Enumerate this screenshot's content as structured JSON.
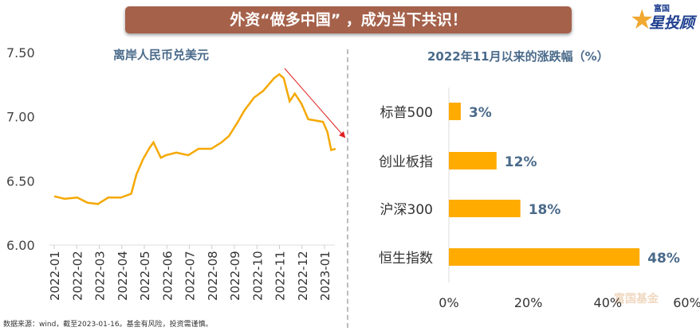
{
  "banner": {
    "title": "外资“做多中国” ，成为当下共识！"
  },
  "logo": {
    "small": "富国",
    "big": "星投顾"
  },
  "watermark": "富国基金",
  "source": "数据来源：wind，截至2023-01-16。基金有风险，投资需谨慎。",
  "colors": {
    "line": "#f5a800",
    "bar": "#ffab00",
    "arrow": "#e02020",
    "label": "#4a6a8a"
  },
  "chart_data": [
    {
      "type": "line",
      "title": "离岸人民币兑美元",
      "ylim": [
        6.0,
        7.5
      ],
      "yticks": [
        "7.50",
        "7.00",
        "6.50",
        "6.00"
      ],
      "xticks": [
        "2022-01",
        "2022-02",
        "2022-03",
        "2022-04",
        "2022-05",
        "2022-06",
        "2022-07",
        "2022-08",
        "2022-09",
        "2022-10",
        "2022-11",
        "2022-12",
        "2023-01"
      ],
      "grid": false,
      "x": [
        "2022-01-01",
        "2022-01-15",
        "2022-02-01",
        "2022-02-15",
        "2022-03-01",
        "2022-03-15",
        "2022-04-01",
        "2022-04-15",
        "2022-04-22",
        "2022-05-01",
        "2022-05-10",
        "2022-05-15",
        "2022-05-25",
        "2022-06-01",
        "2022-06-15",
        "2022-07-01",
        "2022-07-15",
        "2022-08-01",
        "2022-08-15",
        "2022-08-25",
        "2022-09-05",
        "2022-09-15",
        "2022-09-28",
        "2022-10-10",
        "2022-10-25",
        "2022-11-01",
        "2022-11-07",
        "2022-11-15",
        "2022-11-22",
        "2022-12-01",
        "2022-12-10",
        "2022-12-20",
        "2022-12-30",
        "2023-01-05",
        "2023-01-10",
        "2023-01-16"
      ],
      "values": [
        6.38,
        6.36,
        6.37,
        6.33,
        6.32,
        6.37,
        6.37,
        6.4,
        6.55,
        6.67,
        6.76,
        6.8,
        6.68,
        6.7,
        6.72,
        6.7,
        6.75,
        6.75,
        6.8,
        6.85,
        6.95,
        7.05,
        7.15,
        7.2,
        7.3,
        7.33,
        7.3,
        7.12,
        7.18,
        7.1,
        6.98,
        6.97,
        6.96,
        6.88,
        6.74,
        6.75
      ],
      "annotation": "downward-arrow"
    },
    {
      "type": "bar",
      "orientation": "horizontal",
      "title": "2022年11月以来的涨跌幅（%）",
      "categories": [
        "标普500",
        "创业板指",
        "沪深300",
        "恒生指数"
      ],
      "values": [
        3,
        12,
        18,
        48
      ],
      "labels": [
        "3%",
        "12%",
        "18%",
        "48%"
      ],
      "xlim": [
        0,
        60
      ],
      "xticks": [
        "0%",
        "20%",
        "40%",
        "60%"
      ]
    }
  ]
}
